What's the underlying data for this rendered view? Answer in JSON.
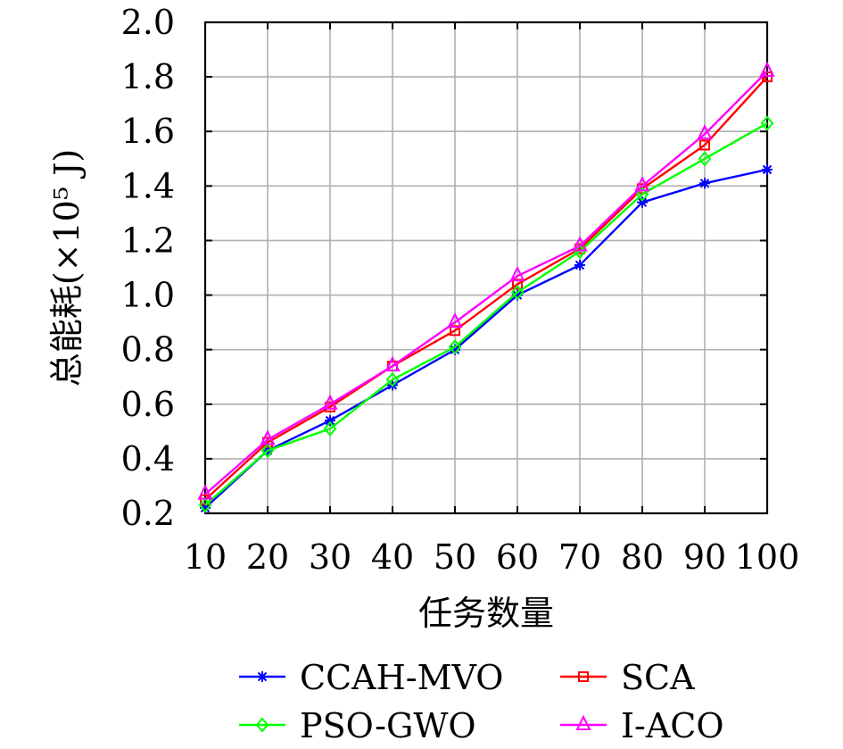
{
  "chart_data": {
    "type": "line",
    "title": "",
    "xlabel": "任务数量",
    "ylabel": "总能耗(×10⁵ J)",
    "x": [
      10,
      20,
      30,
      40,
      50,
      60,
      70,
      80,
      90,
      100
    ],
    "x_tick_labels": [
      "10",
      "20",
      "30",
      "40",
      "50",
      "60",
      "70",
      "80",
      "90",
      "100"
    ],
    "ylim": [
      0.2,
      2.0
    ],
    "y_ticks": [
      0.2,
      0.4,
      0.6,
      0.8,
      1.0,
      1.2,
      1.4,
      1.6,
      1.8,
      2.0
    ],
    "y_tick_labels": [
      "0.2",
      "0.4",
      "0.6",
      "0.8",
      "1.0",
      "1.2",
      "1.4",
      "1.6",
      "1.8",
      "2.0"
    ],
    "grid": true,
    "legend_position": "bottom",
    "series": [
      {
        "name": "CCAH-MVO",
        "color": "#0000ff",
        "marker": "asterisk",
        "values": [
          0.22,
          0.43,
          0.54,
          0.67,
          0.8,
          1.0,
          1.11,
          1.34,
          1.41,
          1.46
        ]
      },
      {
        "name": "SCA",
        "color": "#ff0000",
        "marker": "square",
        "values": [
          0.25,
          0.46,
          0.59,
          0.74,
          0.87,
          1.04,
          1.17,
          1.39,
          1.55,
          1.8
        ]
      },
      {
        "name": "PSO-GWO",
        "color": "#00ff00",
        "marker": "diamond",
        "values": [
          0.23,
          0.43,
          0.51,
          0.69,
          0.81,
          1.01,
          1.16,
          1.37,
          1.5,
          1.63
        ]
      },
      {
        "name": "I-ACO",
        "color": "#ff00ff",
        "marker": "triangle",
        "values": [
          0.27,
          0.47,
          0.6,
          0.74,
          0.9,
          1.07,
          1.18,
          1.4,
          1.59,
          1.82
        ]
      }
    ]
  }
}
